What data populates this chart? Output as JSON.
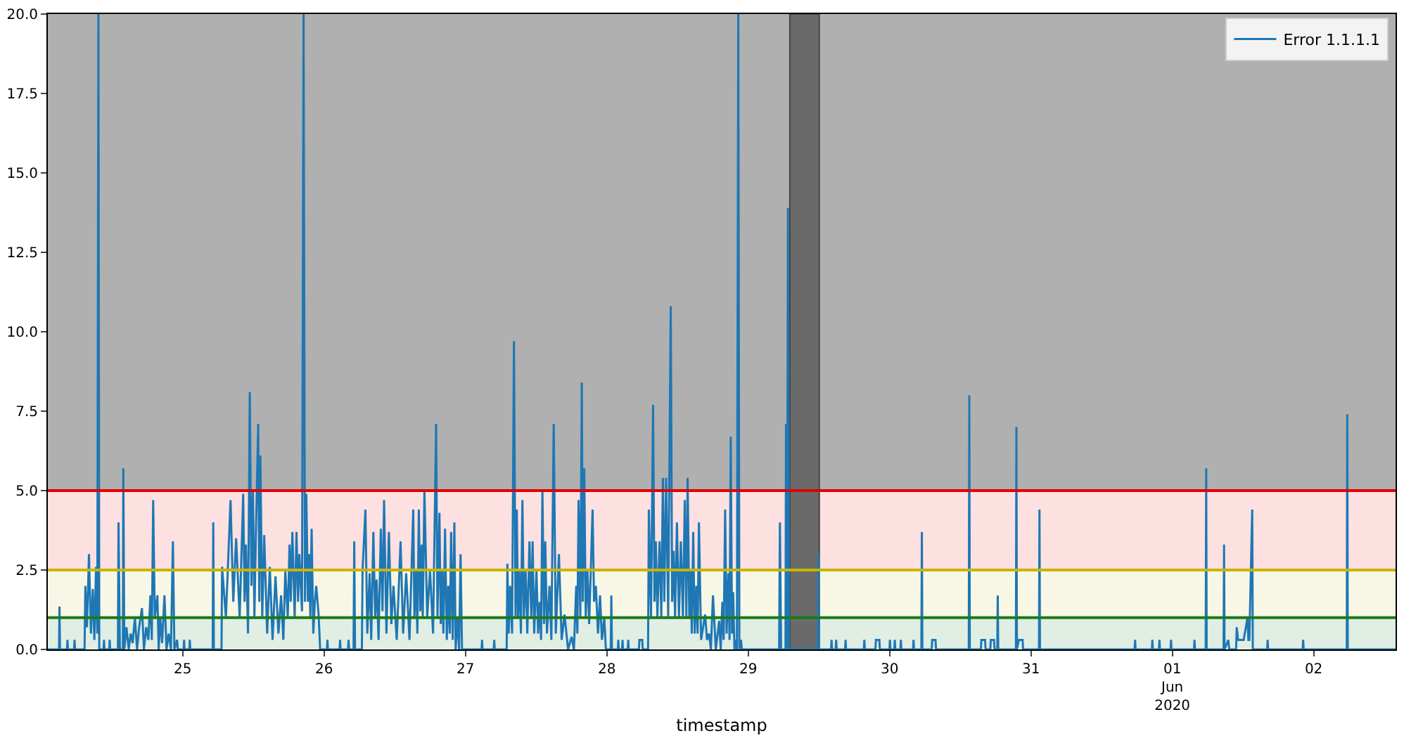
{
  "chart_data": {
    "type": "line",
    "xlabel": "timestamp",
    "xlim": [
      "2020-05-24T01:06",
      "2020-06-02T13:54"
    ],
    "xticks": [
      {
        "value": "2020-05-25",
        "label": "25"
      },
      {
        "value": "2020-05-26",
        "label": "26"
      },
      {
        "value": "2020-05-27",
        "label": "27"
      },
      {
        "value": "2020-05-28",
        "label": "28"
      },
      {
        "value": "2020-05-29",
        "label": "29"
      },
      {
        "value": "2020-05-30",
        "label": "30"
      },
      {
        "value": "2020-05-31",
        "label": "31"
      },
      {
        "value": "2020-06-01",
        "label": "01\nJun\n2020"
      },
      {
        "value": "2020-06-02",
        "label": "02"
      }
    ],
    "ylim": [
      0,
      20
    ],
    "yticks": [
      {
        "value": 0,
        "label": "0.0"
      },
      {
        "value": 2.5,
        "label": "2.5"
      },
      {
        "value": 5,
        "label": "5.0"
      },
      {
        "value": 7.5,
        "label": "7.5"
      },
      {
        "value": 10,
        "label": "10.0"
      },
      {
        "value": 12.5,
        "label": "12.5"
      },
      {
        "value": 15,
        "label": "15.0"
      },
      {
        "value": 17.5,
        "label": "17.5"
      },
      {
        "value": 20,
        "label": "20.0"
      }
    ],
    "legend": "top right",
    "bands": [
      {
        "axis": "y",
        "from": 0,
        "to": 1,
        "color": "#e0eee4"
      },
      {
        "axis": "y",
        "from": 1,
        "to": 2.5,
        "color": "#f8f7e6"
      },
      {
        "axis": "y",
        "from": 2.5,
        "to": 5,
        "color": "#fde1e1"
      },
      {
        "axis": "y",
        "from": 5,
        "to": 20,
        "color": "#b0b0b0"
      },
      {
        "axis": "x",
        "from": "2020-05-29T07:04",
        "to": "2020-05-29T12:04",
        "color": "#6a6a6a"
      }
    ],
    "ref_lines": [
      {
        "axis": "y",
        "value": 1,
        "color": "#1a7a1a"
      },
      {
        "axis": "y",
        "value": 2.5,
        "color": "#c8b400"
      },
      {
        "axis": "y",
        "value": 5,
        "color": "#e00000"
      }
    ],
    "series": [
      {
        "name": "Error 1.1.1.1",
        "color": "#1f77b4",
        "x": [
          "2020-05-24T01:06",
          "2020-05-24T03:00",
          "2020-05-24T03:05",
          "2020-05-24T03:10",
          "2020-05-24T04:21",
          "2020-05-24T04:26",
          "2020-05-24T04:31",
          "2020-05-24T05:33",
          "2020-05-24T05:38",
          "2020-05-24T05:43",
          "2020-05-24T07:20",
          "2020-05-24T07:28",
          "2020-05-24T07:45",
          "2020-05-24T08:05",
          "2020-05-24T08:25",
          "2020-05-24T08:44",
          "2020-05-24T09:00",
          "2020-05-24T09:17",
          "2020-05-24T09:30",
          "2020-05-24T09:41",
          "2020-05-24T09:50",
          "2020-05-24T10:33",
          "2020-05-24T10:38",
          "2020-05-24T10:43",
          "2020-05-24T11:31",
          "2020-05-24T11:36",
          "2020-05-24T11:41",
          "2020-05-24T13:00",
          "2020-05-24T13:06",
          "2020-05-24T13:20",
          "2020-05-24T13:50",
          "2020-05-24T13:55",
          "2020-05-24T14:05",
          "2020-05-24T14:27",
          "2020-05-24T14:50",
          "2020-05-24T15:10",
          "2020-05-24T15:30",
          "2020-05-24T15:53",
          "2020-05-24T16:15",
          "2020-05-24T16:36",
          "2020-05-24T17:05",
          "2020-05-24T17:25",
          "2020-05-24T17:48",
          "2020-05-24T18:10",
          "2020-05-24T18:31",
          "2020-05-24T18:45",
          "2020-05-24T18:59",
          "2020-05-24T19:15",
          "2020-05-24T19:42",
          "2020-05-24T19:55",
          "2020-05-24T20:11",
          "2020-05-24T20:30",
          "2020-05-24T20:54",
          "2020-05-24T21:15",
          "2020-05-24T21:37",
          "2020-05-24T22:00",
          "2020-05-24T22:20",
          "2020-05-24T22:35",
          "2020-05-24T23:03",
          "2020-05-24T23:10",
          "2020-05-25T00:09",
          "2020-05-25T00:14",
          "2020-05-25T00:19",
          "2020-05-25T01:07",
          "2020-05-25T01:12",
          "2020-05-25T01:17",
          "2020-05-25T05:05",
          "2020-05-25T05:11",
          "2020-05-25T05:17",
          "2020-05-25T06:35",
          "2020-05-25T06:41",
          "2020-05-25T07:20",
          "2020-05-25T08:07",
          "2020-05-25T08:35",
          "2020-05-25T09:04",
          "2020-05-25T09:40",
          "2020-05-25T10:16",
          "2020-05-25T10:30",
          "2020-05-25T10:44",
          "2020-05-25T11:05",
          "2020-05-25T11:23",
          "2020-05-25T11:40",
          "2020-05-25T11:56",
          "2020-05-25T12:10",
          "2020-05-25T12:25",
          "2020-05-25T12:49",
          "2020-05-25T13:00",
          "2020-05-25T13:11",
          "2020-05-25T13:30",
          "2020-05-25T13:50",
          "2020-05-25T14:20",
          "2020-05-25T14:47",
          "2020-05-25T15:15",
          "2020-05-25T15:45",
          "2020-05-25T16:15",
          "2020-05-25T16:42",
          "2020-05-25T17:05",
          "2020-05-25T17:25",
          "2020-05-25T17:50",
          "2020-05-25T18:08",
          "2020-05-25T18:20",
          "2020-05-25T18:37",
          "2020-05-25T19:00",
          "2020-05-25T19:19",
          "2020-05-25T19:35",
          "2020-05-25T19:48",
          "2020-05-25T20:15",
          "2020-05-25T20:31",
          "2020-05-25T20:45",
          "2020-05-25T20:59",
          "2020-05-25T21:15",
          "2020-05-25T21:28",
          "2020-05-25T21:40",
          "2020-05-25T21:53",
          "2020-05-25T22:10",
          "2020-05-25T22:26",
          "2020-05-25T22:40",
          "2020-05-25T23:04",
          "2020-05-25T23:20",
          "2020-05-26T00:29",
          "2020-05-26T00:34",
          "2020-05-26T00:39",
          "2020-05-26T02:38",
          "2020-05-26T02:43",
          "2020-05-26T02:48",
          "2020-05-26T04:04",
          "2020-05-26T04:09",
          "2020-05-26T04:14",
          "2020-05-26T05:00",
          "2020-05-26T05:07",
          "2020-05-26T05:15",
          "2020-05-26T06:25",
          "2020-05-26T06:32",
          "2020-05-26T07:01",
          "2020-05-26T07:20",
          "2020-05-26T07:44",
          "2020-05-26T08:00",
          "2020-05-26T08:22",
          "2020-05-26T08:40",
          "2020-05-26T08:55",
          "2020-05-26T09:15",
          "2020-05-26T09:38",
          "2020-05-26T09:55",
          "2020-05-26T10:11",
          "2020-05-26T10:35",
          "2020-05-26T11:00",
          "2020-05-26T11:25",
          "2020-05-26T11:47",
          "2020-05-26T12:20",
          "2020-05-26T12:59",
          "2020-05-26T13:25",
          "2020-05-26T13:56",
          "2020-05-26T14:30",
          "2020-05-26T15:08",
          "2020-05-26T15:20",
          "2020-05-26T15:36",
          "2020-05-26T15:50",
          "2020-05-26T16:05",
          "2020-05-26T16:20",
          "2020-05-26T16:34",
          "2020-05-26T16:45",
          "2020-05-26T17:02",
          "2020-05-26T17:30",
          "2020-05-26T17:59",
          "2020-05-26T18:30",
          "2020-05-26T19:01",
          "2020-05-26T19:15",
          "2020-05-26T19:35",
          "2020-05-26T19:48",
          "2020-05-26T20:01",
          "2020-05-26T20:15",
          "2020-05-26T20:32",
          "2020-05-26T20:50",
          "2020-05-26T21:05",
          "2020-05-26T21:20",
          "2020-05-26T21:34",
          "2020-05-26T21:50",
          "2020-05-26T22:07",
          "2020-05-26T22:20",
          "2020-05-26T22:38",
          "2020-05-26T22:55",
          "2020-05-26T23:10",
          "2020-05-26T23:25",
          "2020-05-27T02:44",
          "2020-05-27T02:49",
          "2020-05-27T02:54",
          "2020-05-27T04:48",
          "2020-05-27T04:53",
          "2020-05-27T04:58",
          "2020-05-27T07:00",
          "2020-05-27T07:07",
          "2020-05-27T07:20",
          "2020-05-27T07:35",
          "2020-05-27T07:55",
          "2020-05-27T08:14",
          "2020-05-27T08:30",
          "2020-05-27T08:43",
          "2020-05-27T08:55",
          "2020-05-27T09:08",
          "2020-05-27T09:25",
          "2020-05-27T09:40",
          "2020-05-27T09:55",
          "2020-05-27T10:13",
          "2020-05-27T10:30",
          "2020-05-27T10:52",
          "2020-05-27T11:10",
          "2020-05-27T11:24",
          "2020-05-27T11:40",
          "2020-05-27T12:03",
          "2020-05-27T12:20",
          "2020-05-27T12:36",
          "2020-05-27T12:50",
          "2020-05-27T13:04",
          "2020-05-27T13:20",
          "2020-05-27T13:33",
          "2020-05-27T13:50",
          "2020-05-27T14:16",
          "2020-05-27T14:35",
          "2020-05-27T14:59",
          "2020-05-27T15:20",
          "2020-05-27T15:52",
          "2020-05-27T16:20",
          "2020-05-27T16:49",
          "2020-05-27T17:25",
          "2020-05-27T18:01",
          "2020-05-27T18:25",
          "2020-05-27T18:48",
          "2020-05-27T19:00",
          "2020-05-27T19:12",
          "2020-05-27T19:30",
          "2020-05-27T19:45",
          "2020-05-27T19:55",
          "2020-05-27T20:10",
          "2020-05-27T20:25",
          "2020-05-27T20:43",
          "2020-05-27T21:00",
          "2020-05-27T21:35",
          "2020-05-27T21:50",
          "2020-05-27T22:08",
          "2020-05-27T22:30",
          "2020-05-27T22:51",
          "2020-05-27T23:10",
          "2020-05-27T23:34",
          "2020-05-27T23:50",
          "2020-05-28T00:40",
          "2020-05-28T00:46",
          "2020-05-28T00:52",
          "2020-05-28T01:52",
          "2020-05-28T01:57",
          "2020-05-28T02:02",
          "2020-05-28T02:35",
          "2020-05-28T02:40",
          "2020-05-28T02:45",
          "2020-05-28T03:33",
          "2020-05-28T03:38",
          "2020-05-28T03:43",
          "2020-05-28T05:27",
          "2020-05-28T05:32",
          "2020-05-28T06:01",
          "2020-05-28T06:06",
          "2020-05-28T07:00",
          "2020-05-28T07:08",
          "2020-05-28T07:30",
          "2020-05-28T07:51",
          "2020-05-28T08:05",
          "2020-05-28T08:19",
          "2020-05-28T08:35",
          "2020-05-28T08:57",
          "2020-05-28T09:15",
          "2020-05-28T09:31",
          "2020-05-28T09:45",
          "2020-05-28T10:04",
          "2020-05-28T10:25",
          "2020-05-28T10:51",
          "2020-05-28T11:05",
          "2020-05-28T11:20",
          "2020-05-28T11:35",
          "2020-05-28T11:54",
          "2020-05-28T12:15",
          "2020-05-28T12:34",
          "2020-05-28T12:55",
          "2020-05-28T13:14",
          "2020-05-28T13:30",
          "2020-05-28T13:43",
          "2020-05-28T14:00",
          "2020-05-28T14:14",
          "2020-05-28T14:25",
          "2020-05-28T14:40",
          "2020-05-28T14:55",
          "2020-05-28T15:12",
          "2020-05-28T15:25",
          "2020-05-28T15:38",
          "2020-05-28T16:00",
          "2020-05-28T16:41",
          "2020-05-28T17:00",
          "2020-05-28T17:21",
          "2020-05-28T17:40",
          "2020-05-28T18:01",
          "2020-05-28T18:30",
          "2020-05-28T19:04",
          "2020-05-28T19:20",
          "2020-05-28T19:37",
          "2020-05-28T19:50",
          "2020-05-28T20:05",
          "2020-05-28T20:20",
          "2020-05-28T20:38",
          "2020-05-28T20:50",
          "2020-05-28T21:02",
          "2020-05-28T21:15",
          "2020-05-28T21:27",
          "2020-05-28T21:40",
          "2020-05-28T21:53",
          "2020-05-28T22:05",
          "2020-05-28T22:19",
          "2020-05-28T22:30",
          "2020-05-28T22:47",
          "2020-05-28T22:55",
          "2020-05-29T05:15",
          "2020-05-29T05:23",
          "2020-05-29T05:35",
          "2020-05-29T06:20",
          "2020-05-29T06:25",
          "2020-05-29T06:35",
          "2020-05-29T06:45",
          "2020-05-29T06:55",
          "2020-05-29T11:50",
          "2020-05-29T11:54",
          "2020-05-29T12:00",
          "2020-05-29T14:04",
          "2020-05-29T14:09",
          "2020-05-29T14:14",
          "2020-05-29T14:51",
          "2020-05-29T14:56",
          "2020-05-29T15:01",
          "2020-05-29T16:27",
          "2020-05-29T16:32",
          "2020-05-29T16:37",
          "2020-05-29T19:38",
          "2020-05-29T19:43",
          "2020-05-29T19:48",
          "2020-05-29T21:36",
          "2020-05-29T21:41",
          "2020-05-29T22:16",
          "2020-05-29T22:21",
          "2020-05-29T23:59",
          "2020-05-30T00:04",
          "2020-05-30T00:09",
          "2020-05-30T00:48",
          "2020-05-30T00:53",
          "2020-05-30T00:58",
          "2020-05-30T01:50",
          "2020-05-30T01:55",
          "2020-05-30T02:00",
          "2020-05-30T03:59",
          "2020-05-30T04:04",
          "2020-05-30T04:09",
          "2020-05-30T05:24",
          "2020-05-30T05:29",
          "2020-05-30T05:34",
          "2020-05-30T07:09",
          "2020-05-30T07:14",
          "2020-05-30T07:48",
          "2020-05-30T07:53",
          "2020-05-30T13:27",
          "2020-05-30T13:32",
          "2020-05-30T13:37",
          "2020-05-30T15:30",
          "2020-05-30T15:35",
          "2020-05-30T16:13",
          "2020-05-30T16:18",
          "2020-05-30T17:06",
          "2020-05-30T17:11",
          "2020-05-30T17:44",
          "2020-05-30T17:49",
          "2020-05-30T18:17",
          "2020-05-30T18:22",
          "2020-05-30T18:27",
          "2020-05-30T21:27",
          "2020-05-30T21:32",
          "2020-05-30T21:37",
          "2020-05-30T21:57",
          "2020-05-30T22:35",
          "2020-05-30T22:40",
          "2020-05-31T01:22",
          "2020-05-31T01:27",
          "2020-05-31T01:32",
          "2020-05-31T17:36",
          "2020-05-31T17:41",
          "2020-05-31T17:46",
          "2020-05-31T20:32",
          "2020-05-31T20:37",
          "2020-05-31T20:42",
          "2020-05-31T21:44",
          "2020-05-31T21:49",
          "2020-05-31T21:54",
          "2020-05-31T23:42",
          "2020-05-31T23:47",
          "2020-05-31T23:52",
          "2020-06-01T03:41",
          "2020-06-01T03:46",
          "2020-06-01T03:51",
          "2020-06-01T05:40",
          "2020-06-01T05:45",
          "2020-06-01T05:50",
          "2020-06-01T08:42",
          "2020-06-01T08:47",
          "2020-06-01T08:52",
          "2020-06-01T09:30",
          "2020-06-01T09:40",
          "2020-06-01T10:50",
          "2020-06-01T10:56",
          "2020-06-01T11:10",
          "2020-06-01T11:39",
          "2020-06-01T12:07",
          "2020-06-01T12:46",
          "2020-06-01T12:55",
          "2020-06-01T13:05",
          "2020-06-01T13:34",
          "2020-06-01T13:40",
          "2020-06-01T16:06",
          "2020-06-01T16:11",
          "2020-06-01T16:16",
          "2020-06-01T22:08",
          "2020-06-01T22:13",
          "2020-06-01T22:18",
          "2020-06-02T05:37",
          "2020-06-02T05:42",
          "2020-06-02T05:47",
          "2020-06-02T13:54"
        ],
        "values": [
          0,
          0,
          1.35,
          0,
          0,
          0.3,
          0,
          0,
          0.3,
          0,
          0,
          2.0,
          0.7,
          3.0,
          0.5,
          1.9,
          0.3,
          2.6,
          0.5,
          20,
          0,
          0,
          0.3,
          0,
          0,
          0.3,
          0,
          0,
          4.0,
          0,
          0,
          5.7,
          0,
          0.7,
          0,
          0.5,
          0.2,
          1.0,
          0,
          0.7,
          1.3,
          0,
          0.7,
          0.3,
          1.7,
          0.3,
          4.7,
          1.0,
          1.7,
          0,
          1.0,
          0.2,
          1.7,
          0,
          0.5,
          0,
          3.4,
          0,
          0.3,
          0,
          0,
          0.3,
          0,
          0,
          0.3,
          0,
          0,
          4.0,
          0,
          0,
          2.6,
          1.0,
          4.7,
          1.5,
          3.5,
          1.0,
          4.9,
          1.5,
          3.3,
          0.5,
          8.1,
          2.0,
          5.0,
          1.0,
          3.6,
          7.1,
          1.5,
          6.1,
          1.0,
          3.6,
          0.5,
          2.6,
          0.3,
          2.3,
          0.5,
          1.7,
          0.3,
          2.5,
          1.0,
          3.3,
          1.5,
          3.7,
          1.0,
          3.7,
          1.5,
          3.0,
          1.2,
          20,
          1.5,
          4.9,
          1.5,
          3.0,
          1.0,
          3.8,
          0.5,
          1.5,
          2.0,
          1.1,
          0,
          0,
          0.3,
          0,
          0,
          0.3,
          0,
          0,
          0.3,
          0,
          0,
          3.4,
          0,
          0,
          2.5,
          4.4,
          0.5,
          2.4,
          0.3,
          3.7,
          1.0,
          2.2,
          0.3,
          3.8,
          1.2,
          4.7,
          0.5,
          3.7,
          0.8,
          2.0,
          0.3,
          3.4,
          0.5,
          2.4,
          0.3,
          4.4,
          1.0,
          2.5,
          0.5,
          4.4,
          1.2,
          3.3,
          1.0,
          5.0,
          1.0,
          2.5,
          0.5,
          7.1,
          1.0,
          4.3,
          0.8,
          2.5,
          0.5,
          3.8,
          0.3,
          2.0,
          0.5,
          3.7,
          0.3,
          4.0,
          0,
          1.0,
          0,
          3.0,
          0,
          0,
          0.3,
          0,
          0,
          0.3,
          0,
          0,
          2.7,
          0.5,
          2.0,
          0.5,
          9.7,
          1.0,
          4.4,
          1.0,
          2.5,
          0.5,
          4.7,
          1.0,
          2.5,
          0.5,
          3.4,
          1.0,
          3.4,
          0.5,
          2.5,
          0.5,
          1.5,
          0.3,
          5.0,
          0.8,
          3.4,
          0.5,
          2.0,
          0.3,
          7.1,
          0.5,
          3.0,
          0.3,
          1.1,
          0,
          0.4,
          0,
          2.0,
          0.5,
          4.7,
          1.0,
          8.4,
          1.5,
          5.7,
          1.0,
          2.5,
          0.8,
          4.4,
          1.5,
          2.0,
          0.5,
          1.7,
          0.3,
          1.0,
          0,
          0,
          1.7,
          0,
          0,
          0.3,
          0,
          0,
          0.3,
          0,
          0,
          0.3,
          0,
          0,
          0.3,
          0.3,
          0,
          0,
          4.4,
          1.0,
          7.7,
          1.5,
          3.4,
          1.0,
          3.4,
          1.0,
          5.4,
          1.5,
          5.4,
          1.0,
          10.8,
          1.5,
          3.1,
          1.0,
          4.0,
          1.0,
          3.4,
          1.0,
          4.7,
          1.0,
          5.4,
          1.0,
          2.5,
          0.5,
          3.7,
          0.5,
          2.0,
          0.5,
          4.0,
          0.3,
          1.1,
          0.3,
          0.5,
          0,
          1.7,
          0,
          0.9,
          0,
          1.5,
          0.3,
          4.4,
          0.5,
          2.4,
          0.3,
          6.7,
          0.5,
          1.8,
          0,
          0.3,
          0,
          20,
          0,
          0.3,
          0,
          0,
          4.0,
          0,
          0,
          7.1,
          0,
          13.9,
          0,
          0,
          3.0,
          0,
          0,
          0.3,
          0,
          0,
          0.3,
          0,
          0,
          0.3,
          0,
          0,
          0.3,
          0,
          0,
          0.3,
          0.3,
          0,
          0,
          0.3,
          0,
          0,
          0.3,
          0,
          0,
          0.3,
          0,
          0,
          0.3,
          0,
          0,
          3.7,
          0,
          0,
          0.3,
          0.3,
          0,
          0,
          8.0,
          0,
          0,
          0.3,
          0.3,
          0,
          0,
          0.3,
          0.3,
          0,
          0,
          1.7,
          0,
          0,
          7.0,
          0,
          0.3,
          0.3,
          0,
          0,
          4.4,
          0,
          0,
          0.3,
          0,
          0,
          0.3,
          0,
          0,
          0.3,
          0,
          0,
          0.3,
          0,
          0,
          0.3,
          0,
          0,
          5.7,
          0,
          0,
          3.3,
          0,
          0.3,
          0,
          0,
          0.7,
          0.3,
          0.3,
          0.3,
          1.0,
          0.3,
          0.3,
          4.4,
          0,
          0,
          0.3,
          0,
          0,
          0.3,
          0,
          0,
          7.4,
          0,
          0
        ]
      }
    ]
  }
}
